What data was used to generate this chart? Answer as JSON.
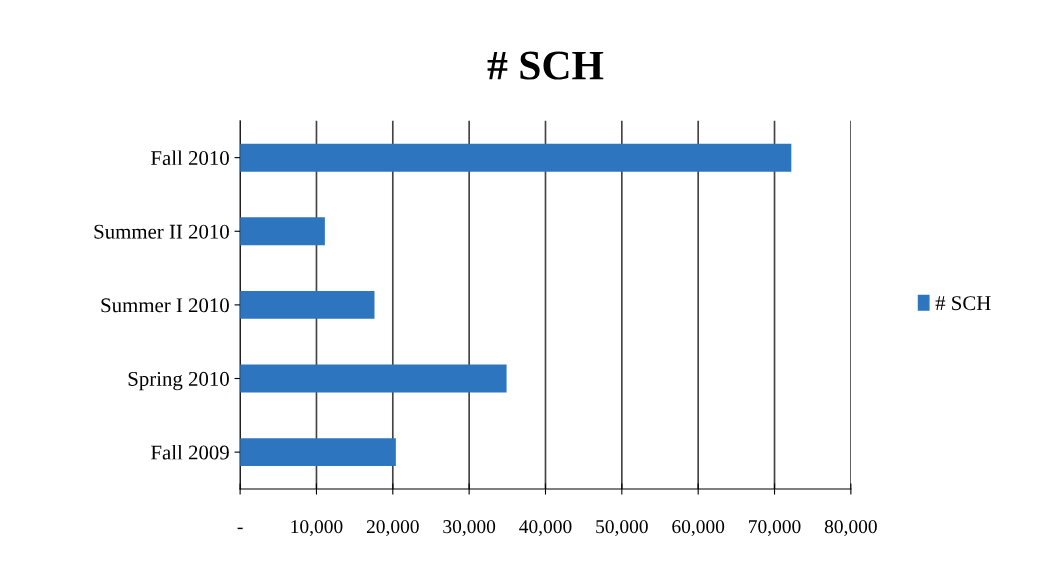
{
  "chart_data": {
    "type": "bar",
    "orientation": "horizontal",
    "title": "# SCH",
    "categories": [
      "Fall 2010",
      "Summer II 2010",
      "Summer I 2010",
      "Spring 2010",
      "Fall 2009"
    ],
    "series": [
      {
        "name": "# SCH",
        "color": "#2e75c0",
        "values": [
          72200,
          11100,
          17600,
          34900,
          20400
        ]
      }
    ],
    "xlim": [
      0,
      80000
    ],
    "xticks": [
      {
        "value": 0,
        "label": "-"
      },
      {
        "value": 10000,
        "label": "10,000"
      },
      {
        "value": 20000,
        "label": "20,000"
      },
      {
        "value": 30000,
        "label": "30,000"
      },
      {
        "value": 40000,
        "label": "40,000"
      },
      {
        "value": 50000,
        "label": "50,000"
      },
      {
        "value": 60000,
        "label": "60,000"
      },
      {
        "value": 70000,
        "label": "70,000"
      },
      {
        "value": 80000,
        "label": "80,000"
      }
    ],
    "grid": "x",
    "legend": "right"
  }
}
